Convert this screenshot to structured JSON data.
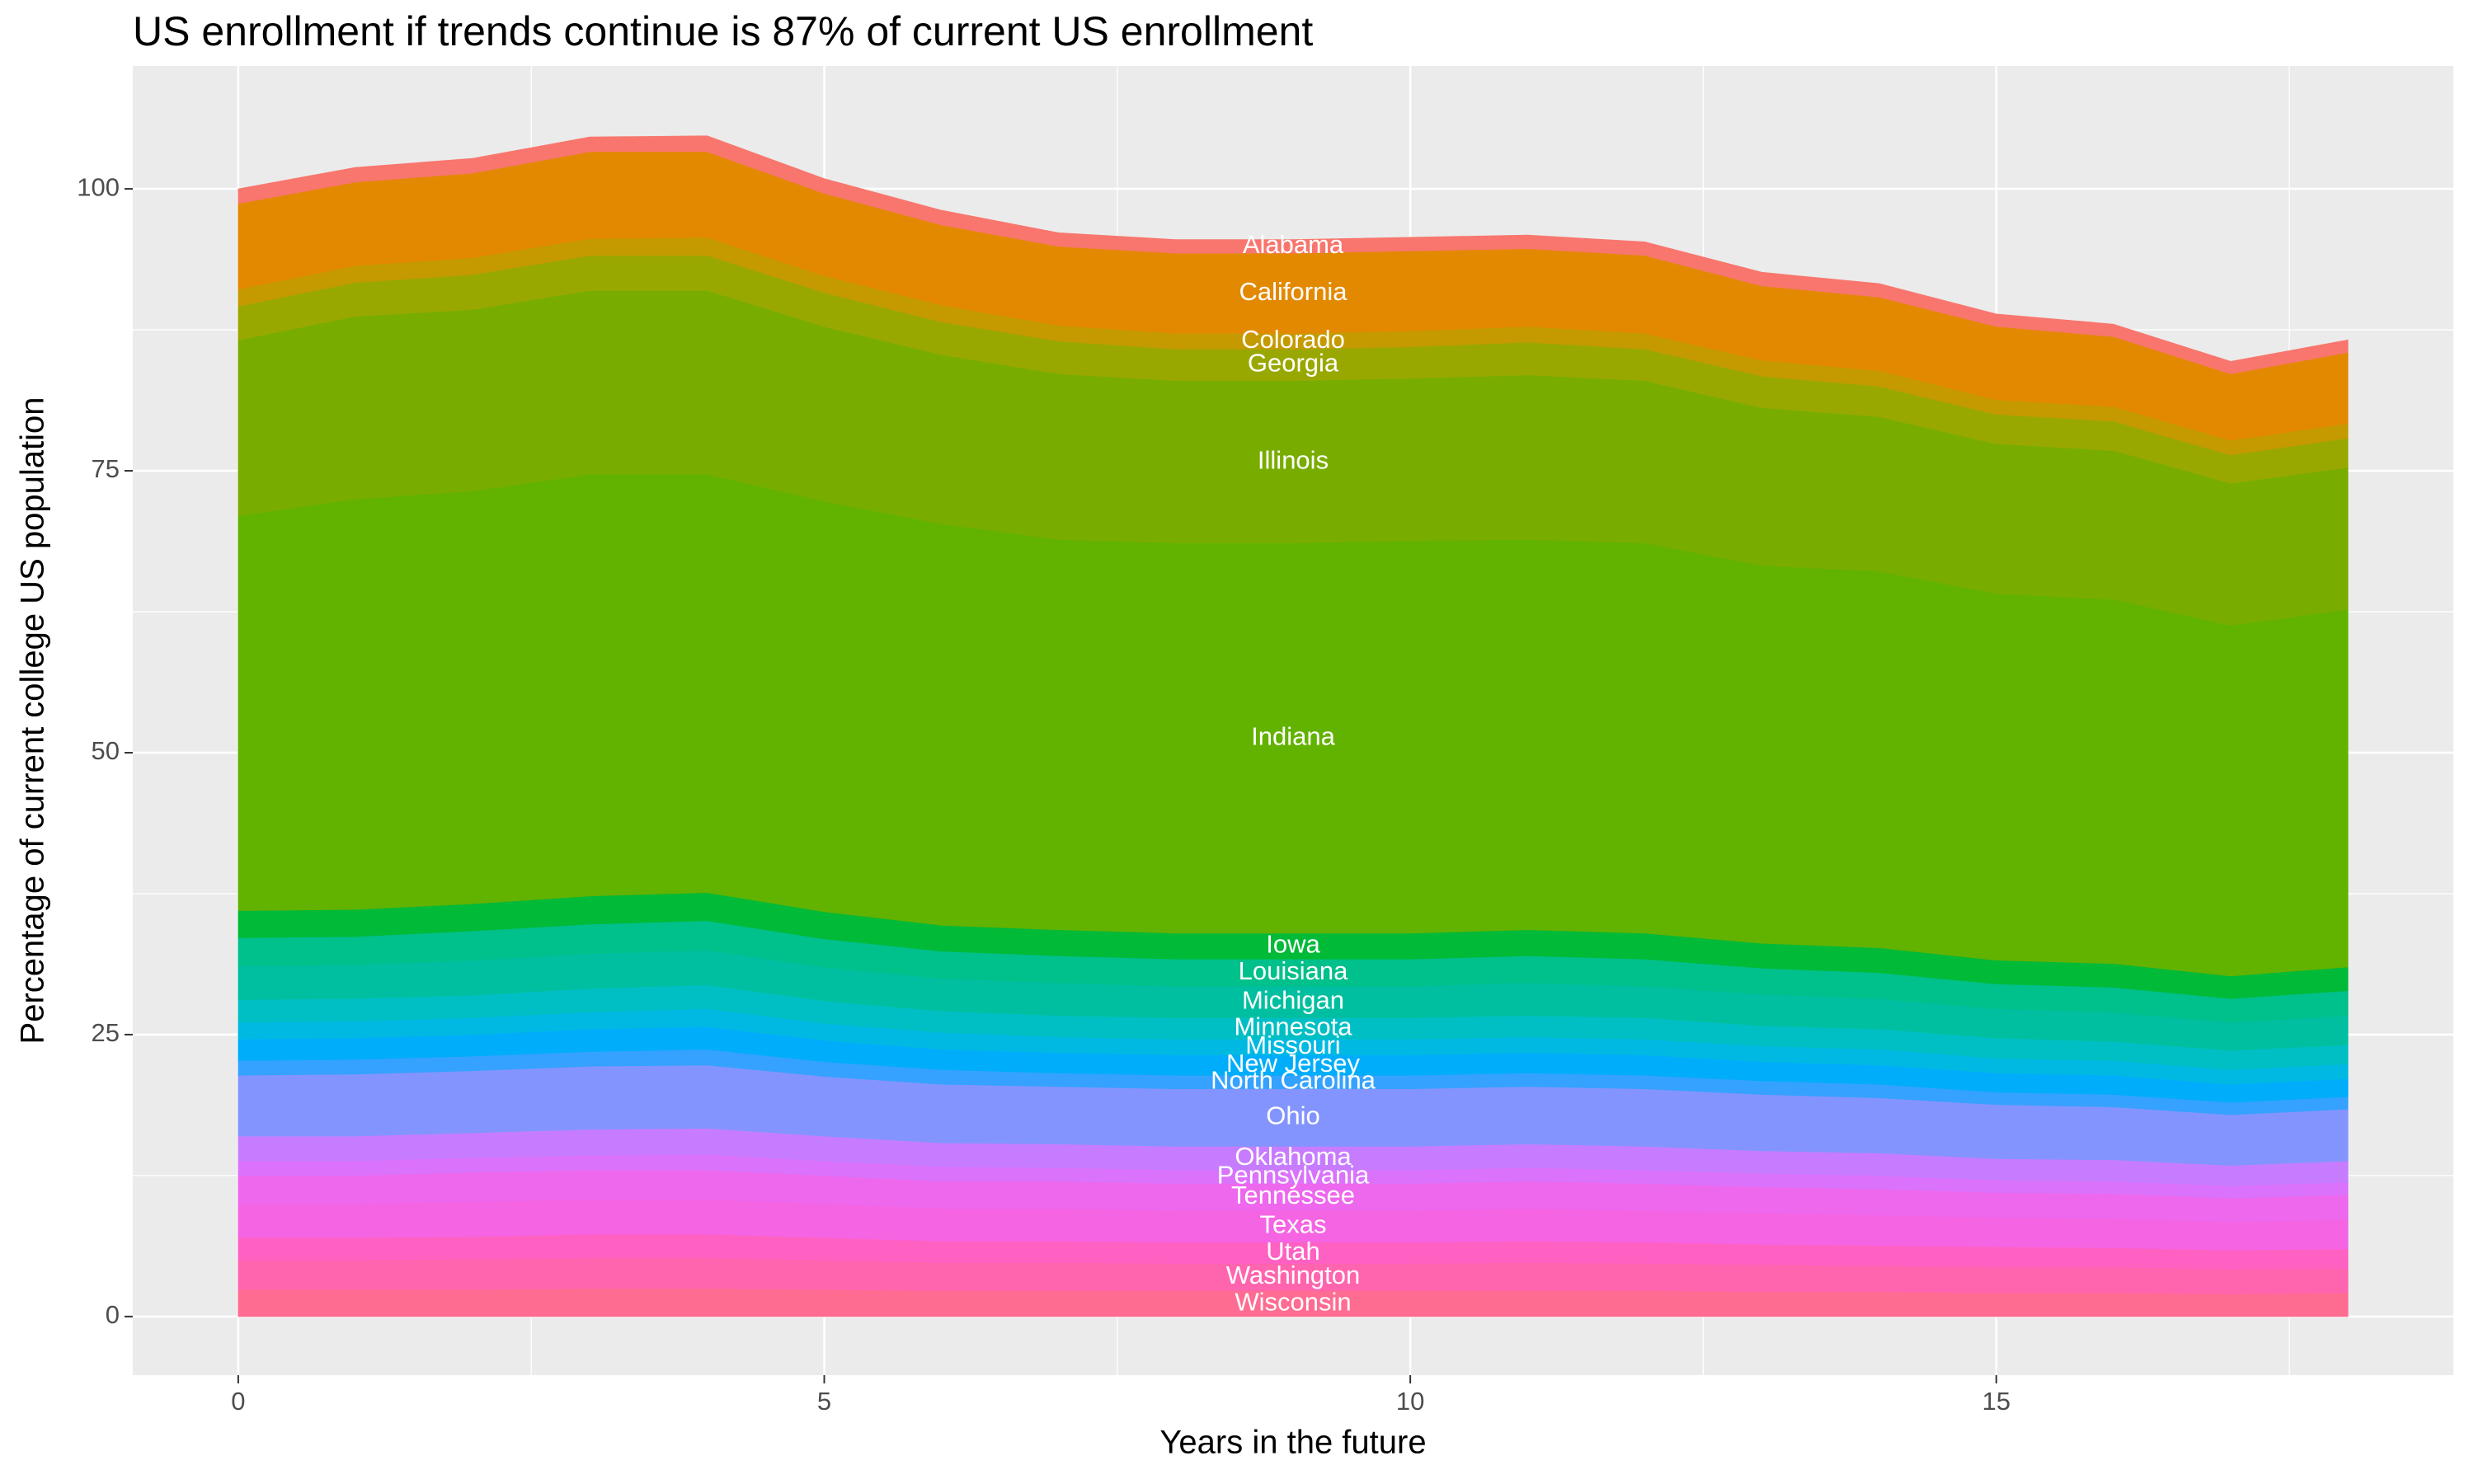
{
  "chart_data": {
    "type": "stacked_area",
    "title": "US enrollment if trends continue is 87% of current US enrollment",
    "x_label": "Years in the future",
    "y_label": "Percentage of current college US population",
    "x": [
      0,
      1,
      2,
      3,
      4,
      5,
      6,
      7,
      8,
      9,
      10,
      11,
      12,
      13,
      14,
      15,
      16,
      17,
      18
    ],
    "xlim": [
      -0.9,
      18.9
    ],
    "xticks": [
      0,
      5,
      10,
      15
    ],
    "xminor_ticks": [
      2.5,
      7.5,
      12.5,
      17.5
    ],
    "ylim": [
      -5.2,
      110.9
    ],
    "yticks": [
      0,
      25,
      50,
      75,
      100
    ],
    "yminor_ticks": [
      12.5,
      37.5,
      62.5,
      87.5
    ],
    "grid": true,
    "background": "#ebebeb",
    "series": [
      {
        "name": "Alabama",
        "color": "#F8766D",
        "values": [
          1.3,
          1.3,
          1.3,
          1.3,
          1.4,
          1.3,
          1.3,
          1.2,
          1.2,
          1.2,
          1.2,
          1.2,
          1.2,
          1.2,
          1.2,
          1.1,
          1.1,
          1.1,
          1.1
        ]
      },
      {
        "name": "California",
        "color": "#E38900",
        "values": [
          7.6,
          7.4,
          7.5,
          7.7,
          7.6,
          7.3,
          7.1,
          7.0,
          7.1,
          7.1,
          7.1,
          6.9,
          6.9,
          6.6,
          6.5,
          6.5,
          6.2,
          5.9,
          6.3
        ]
      },
      {
        "name": "Colorado",
        "color": "#C49A00",
        "values": [
          1.5,
          1.5,
          1.5,
          1.5,
          1.6,
          1.5,
          1.5,
          1.4,
          1.4,
          1.4,
          1.4,
          1.4,
          1.4,
          1.4,
          1.4,
          1.3,
          1.3,
          1.3,
          1.3
        ]
      },
      {
        "name": "Georgia",
        "color": "#99A800",
        "values": [
          3.0,
          3.0,
          3.1,
          3.1,
          3.1,
          3.0,
          2.9,
          2.9,
          2.8,
          2.8,
          2.8,
          2.9,
          2.8,
          2.8,
          2.7,
          2.6,
          2.6,
          2.5,
          2.6
        ]
      },
      {
        "name": "Illinois",
        "color": "#78AD00",
        "values": [
          15.6,
          16.2,
          16.1,
          16.3,
          16.3,
          15.5,
          15.0,
          14.7,
          14.4,
          14.4,
          14.4,
          14.6,
          14.4,
          14.0,
          13.7,
          13.3,
          13.2,
          12.6,
          12.6
        ]
      },
      {
        "name": "Indiana",
        "color": "#62B200",
        "values": [
          35.0,
          36.4,
          36.6,
          37.4,
          37.1,
          36.4,
          35.6,
          34.6,
          34.6,
          34.6,
          34.8,
          34.6,
          34.6,
          33.5,
          33.4,
          32.5,
          32.3,
          31.1,
          31.7
        ]
      },
      {
        "name": "Iowa",
        "color": "#00BA38",
        "values": [
          2.4,
          2.4,
          2.4,
          2.5,
          2.5,
          2.4,
          2.3,
          2.3,
          2.3,
          2.3,
          2.3,
          2.3,
          2.3,
          2.2,
          2.2,
          2.1,
          2.1,
          2.0,
          2.1
        ]
      },
      {
        "name": "Louisiana",
        "color": "#00C08B",
        "values": [
          2.5,
          2.5,
          2.6,
          2.6,
          2.6,
          2.5,
          2.4,
          2.4,
          2.4,
          2.4,
          2.4,
          2.4,
          2.4,
          2.3,
          2.3,
          2.2,
          2.2,
          2.1,
          2.2
        ]
      },
      {
        "name": "Michigan",
        "color": "#00BFA0",
        "values": [
          3.0,
          3.0,
          3.1,
          3.1,
          3.1,
          3.0,
          2.9,
          2.9,
          2.8,
          2.8,
          2.8,
          2.9,
          2.8,
          2.8,
          2.7,
          2.6,
          2.6,
          2.5,
          2.6
        ]
      },
      {
        "name": "Minnesota",
        "color": "#00BFC4",
        "values": [
          2.0,
          2.0,
          2.0,
          2.1,
          2.1,
          2.0,
          1.9,
          1.9,
          1.9,
          1.9,
          1.9,
          1.9,
          1.9,
          1.8,
          1.8,
          1.8,
          1.7,
          1.7,
          1.7
        ]
      },
      {
        "name": "Missouri",
        "color": "#00B9E3",
        "values": [
          1.5,
          1.5,
          1.5,
          1.5,
          1.6,
          1.5,
          1.5,
          1.4,
          1.4,
          1.4,
          1.4,
          1.4,
          1.4,
          1.4,
          1.4,
          1.3,
          1.3,
          1.3,
          1.3
        ]
      },
      {
        "name": "New Jersey",
        "color": "#00ADFA",
        "values": [
          1.9,
          1.9,
          1.9,
          2.0,
          2.0,
          1.9,
          1.8,
          1.8,
          1.8,
          1.8,
          1.8,
          1.8,
          1.8,
          1.7,
          1.7,
          1.7,
          1.7,
          1.6,
          1.6
        ]
      },
      {
        "name": "North Carolina",
        "color": "#35A2FF",
        "values": [
          1.3,
          1.3,
          1.3,
          1.3,
          1.4,
          1.3,
          1.3,
          1.2,
          1.2,
          1.2,
          1.2,
          1.2,
          1.2,
          1.2,
          1.2,
          1.1,
          1.1,
          1.1,
          1.1
        ]
      },
      {
        "name": "Ohio",
        "color": "#8494FF",
        "values": [
          5.4,
          5.5,
          5.5,
          5.6,
          5.6,
          5.3,
          5.2,
          5.1,
          5.1,
          5.1,
          5.1,
          5.1,
          5.1,
          5.0,
          4.9,
          4.8,
          4.7,
          4.5,
          4.6
        ]
      },
      {
        "name": "Oklahoma",
        "color": "#C77CFF",
        "values": [
          2.2,
          2.2,
          2.2,
          2.3,
          2.3,
          2.2,
          2.1,
          2.1,
          2.1,
          2.1,
          2.1,
          2.1,
          2.1,
          2.0,
          2.0,
          1.9,
          1.9,
          1.8,
          1.9
        ]
      },
      {
        "name": "Pennsylvania",
        "color": "#DB72FB",
        "values": [
          1.3,
          1.3,
          1.3,
          1.3,
          1.4,
          1.3,
          1.3,
          1.2,
          1.2,
          1.2,
          1.2,
          1.2,
          1.2,
          1.2,
          1.2,
          1.1,
          1.1,
          1.1,
          1.1
        ]
      },
      {
        "name": "Tennessee",
        "color": "#ED68ED",
        "values": [
          2.5,
          2.5,
          2.6,
          2.6,
          2.6,
          2.5,
          2.4,
          2.4,
          2.4,
          2.4,
          2.4,
          2.4,
          2.4,
          2.3,
          2.3,
          2.2,
          2.2,
          2.1,
          2.2
        ]
      },
      {
        "name": "Texas",
        "color": "#F564E3",
        "values": [
          3.0,
          3.0,
          3.1,
          3.1,
          3.1,
          3.0,
          2.9,
          2.9,
          2.8,
          2.8,
          2.8,
          2.9,
          2.8,
          2.8,
          2.7,
          2.6,
          2.6,
          2.5,
          2.6
        ]
      },
      {
        "name": "Utah",
        "color": "#FF61C3",
        "values": [
          2.0,
          2.0,
          2.0,
          2.1,
          2.1,
          2.0,
          1.9,
          1.9,
          1.9,
          1.9,
          1.9,
          1.9,
          1.9,
          1.8,
          1.8,
          1.8,
          1.7,
          1.7,
          1.7
        ]
      },
      {
        "name": "Washington",
        "color": "#FF65AE",
        "values": [
          2.6,
          2.6,
          2.7,
          2.7,
          2.7,
          2.6,
          2.5,
          2.5,
          2.4,
          2.4,
          2.4,
          2.5,
          2.4,
          2.4,
          2.3,
          2.3,
          2.3,
          2.2,
          2.2
        ]
      },
      {
        "name": "Wisconsin",
        "color": "#FF6C91",
        "values": [
          2.4,
          2.4,
          2.4,
          2.5,
          2.5,
          2.4,
          2.3,
          2.3,
          2.3,
          2.3,
          2.3,
          2.3,
          2.3,
          2.2,
          2.2,
          2.1,
          2.1,
          2.0,
          2.1
        ]
      }
    ]
  }
}
